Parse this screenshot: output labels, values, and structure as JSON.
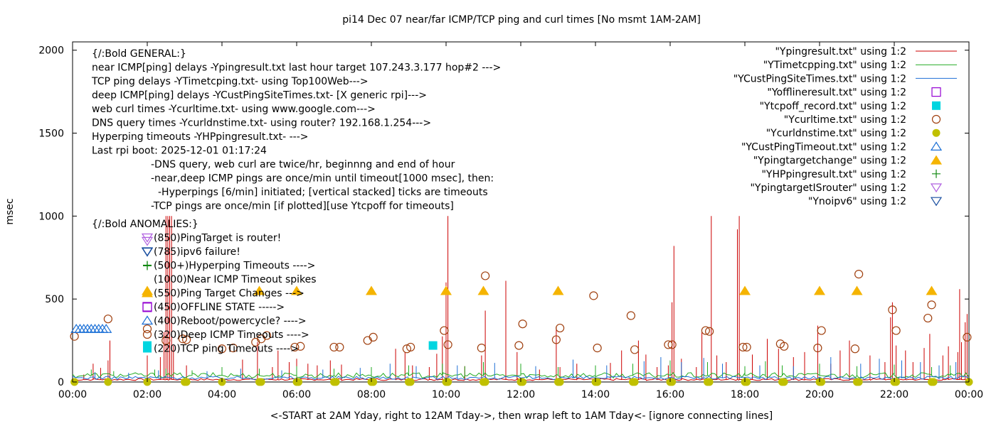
{
  "chart_data": {
    "type": "line",
    "title": "pi14 Dec 07  near/far ICMP/TCP ping and curl times [No msmt 1AM-2AM]",
    "xlabel": "<-START at 2AM Yday, right to 12AM Tday->, then wrap left to 1AM Tday<- [ignore connecting lines]",
    "ylabel": "msec",
    "xlim": [
      0,
      24
    ],
    "ylim": [
      0,
      2050
    ],
    "x_ticks": [
      "00:00",
      "02:00",
      "04:00",
      "06:00",
      "08:00",
      "10:00",
      "12:00",
      "14:00",
      "16:00",
      "18:00",
      "20:00",
      "22:00",
      "00:00"
    ],
    "y_ticks": [
      0,
      500,
      1000,
      1500,
      2000
    ],
    "grid": false,
    "legend_position": "top-right",
    "annotations": [
      {
        "text": "{/:Bold GENERAL:}"
      },
      {
        "text": "near ICMP[ping] delays -Ypingresult.txt last hour target 107.243.3.177 hop#2 --->"
      },
      {
        "text": "TCP ping delays -YTimetcping.txt- using Top100Web--->"
      },
      {
        "text": "deep ICMP[ping] delays -YCustPingSiteTimes.txt- [X generic rpi]--->"
      },
      {
        "text": "web curl times -Ycurltime.txt- using www.google.com--->"
      },
      {
        "text": "DNS query times -Ycurldnstime.txt- using router? 192.168.1.254--->"
      },
      {
        "text": "Hyperping timeouts -YHPpingresult.txt- --->"
      },
      {
        "text": "Last rpi boot: 2025-12-01 01:17:24"
      },
      {
        "text": "-DNS query, web curl are twice/hr, beginnng and end of hour"
      },
      {
        "text": "-near,deep ICMP pings are once/min until timeout[1000 msec], then:"
      },
      {
        "text": "-Hyperpings [6/min] initiated; [vertical stacked] ticks are timeouts"
      },
      {
        "text": "-TCP pings are once/min [if plotted][use Ytcpoff for timeouts]"
      },
      {
        "text": "{/:Bold ANOMALIES:}"
      },
      {
        "text": "(850)PingTarget is router!"
      },
      {
        "text": "(785)ipv6 failure!"
      },
      {
        "text": "(500+)Hyperping Timeouts ---->"
      },
      {
        "text": "(1000)Near ICMP Timeout spikes"
      },
      {
        "text": "(550)Ping Target Changes --->"
      },
      {
        "text": "(450)OFFLINE STATE ----->"
      },
      {
        "text": "(400)Reboot/powercycle? ---->"
      },
      {
        "text": "(320)Deep ICMP Timeouts ---->"
      },
      {
        "text": "(220)TCP ping Timeouts ---->"
      }
    ],
    "legend": [
      {
        "label": "\"Ypingresult.txt\" using 1:2",
        "style": "line",
        "color": "#cc0000"
      },
      {
        "label": "\"YTimetcpping.txt\" using 1:2",
        "style": "line",
        "color": "#22aa22"
      },
      {
        "label": "\"YCustPingSiteTimes.txt\" using 1:2",
        "style": "line",
        "color": "#1f6fd6"
      },
      {
        "label": "\"Yofflineresult.txt\" using 1:2",
        "style": "open-square",
        "color": "#9400d3"
      },
      {
        "label": "\"Ytcpoff_record.txt\" using 1:2",
        "style": "filled-square",
        "color": "#00d5e0"
      },
      {
        "label": "\"Ycurltime.txt\" using 1:2",
        "style": "open-circle",
        "color": "#a0400f"
      },
      {
        "label": "\"Ycurldnstime.txt\" using 1:2",
        "style": "filled-circle",
        "color": "#c0c000"
      },
      {
        "label": "\"YCustPingTimeout.txt\" using 1:2",
        "style": "open-triangle",
        "color": "#1a6fd6"
      },
      {
        "label": "\"Ypingtargetchange\" using 1:2",
        "style": "filled-triangle",
        "color": "#f5b400"
      },
      {
        "label": "\"YHPpingresult.txt\" using 1:2",
        "style": "plus",
        "color": "#118811"
      },
      {
        "label": "\"YpingtargetISrouter\" using 1:2",
        "style": "open-triangle-down",
        "color": "#b060e0"
      },
      {
        "label": "\"Ynoipv6\" using 1:2",
        "style": "open-triangle-down",
        "color": "#1a4fa0"
      }
    ],
    "series": [
      {
        "name": "\"Ypingresult.txt\" using 1:2",
        "baseline": 15,
        "spikes": [
          [
            0.3,
            45
          ],
          [
            0.55,
            110
          ],
          [
            0.75,
            85
          ],
          [
            0.95,
            130
          ],
          [
            1.0,
            250
          ],
          [
            2.0,
            160
          ],
          [
            2.35,
            150
          ],
          [
            2.45,
            300
          ],
          [
            2.5,
            1000
          ],
          [
            2.55,
            1000
          ],
          [
            2.6,
            1000
          ],
          [
            2.65,
            1000
          ],
          [
            2.7,
            220
          ],
          [
            3.05,
            100
          ],
          [
            4.55,
            135
          ],
          [
            4.95,
            240
          ],
          [
            5.35,
            90
          ],
          [
            5.5,
            190
          ],
          [
            5.8,
            120
          ],
          [
            6.0,
            140
          ],
          [
            6.3,
            110
          ],
          [
            6.55,
            100
          ],
          [
            6.9,
            130
          ],
          [
            7.2,
            105
          ],
          [
            8.65,
            200
          ],
          [
            8.9,
            180
          ],
          [
            9.1,
            100
          ],
          [
            9.55,
            90
          ],
          [
            9.75,
            170
          ],
          [
            9.9,
            275
          ],
          [
            10.0,
            600
          ],
          [
            10.05,
            1000
          ],
          [
            10.5,
            95
          ],
          [
            10.95,
            160
          ],
          [
            11.05,
            430
          ],
          [
            11.6,
            610
          ],
          [
            11.9,
            180
          ],
          [
            12.5,
            75
          ],
          [
            12.95,
            330
          ],
          [
            13.05,
            90
          ],
          [
            13.5,
            110
          ],
          [
            14.4,
            115
          ],
          [
            14.7,
            190
          ],
          [
            15.15,
            250
          ],
          [
            15.35,
            165
          ],
          [
            15.65,
            90
          ],
          [
            15.95,
            100
          ],
          [
            16.05,
            480
          ],
          [
            16.1,
            820
          ],
          [
            16.3,
            140
          ],
          [
            16.7,
            90
          ],
          [
            16.85,
            300
          ],
          [
            17.1,
            1000
          ],
          [
            17.25,
            160
          ],
          [
            17.5,
            120
          ],
          [
            17.8,
            920
          ],
          [
            17.85,
            1000
          ],
          [
            18.2,
            165
          ],
          [
            18.6,
            260
          ],
          [
            18.9,
            200
          ],
          [
            19.3,
            150
          ],
          [
            19.6,
            180
          ],
          [
            19.95,
            340
          ],
          [
            20.3,
            110
          ],
          [
            20.55,
            190
          ],
          [
            20.8,
            250
          ],
          [
            21.35,
            160
          ],
          [
            21.75,
            120
          ],
          [
            21.9,
            390
          ],
          [
            21.95,
            480
          ],
          [
            22.05,
            220
          ],
          [
            22.3,
            190
          ],
          [
            22.5,
            120
          ],
          [
            22.8,
            205
          ],
          [
            22.95,
            290
          ],
          [
            23.3,
            160
          ],
          [
            23.45,
            215
          ],
          [
            23.7,
            180
          ],
          [
            23.75,
            560
          ],
          [
            23.8,
            240
          ],
          [
            23.9,
            360
          ],
          [
            23.95,
            410
          ]
        ]
      },
      {
        "name": "\"YTimetcpping.txt\" using 1:2",
        "baseline": 40,
        "spikes": [
          [
            0.5,
            75
          ],
          [
            1.1,
            65
          ],
          [
            2.2,
            75
          ],
          [
            2.5,
            80
          ],
          [
            3.2,
            70
          ],
          [
            4.0,
            90
          ],
          [
            5.0,
            80
          ],
          [
            6.0,
            95
          ],
          [
            7.0,
            80
          ],
          [
            8.0,
            90
          ],
          [
            9.0,
            100
          ],
          [
            9.9,
            110
          ],
          [
            10.5,
            95
          ],
          [
            11.0,
            120
          ],
          [
            12.0,
            110
          ],
          [
            13.0,
            90
          ],
          [
            14.0,
            100
          ],
          [
            15.0,
            110
          ],
          [
            16.0,
            130
          ],
          [
            17.0,
            120
          ],
          [
            18.0,
            95
          ],
          [
            18.55,
            125
          ],
          [
            19.0,
            100
          ],
          [
            20.0,
            110
          ],
          [
            21.0,
            95
          ],
          [
            22.0,
            105
          ],
          [
            23.0,
            90
          ],
          [
            23.5,
            100
          ]
        ]
      },
      {
        "name": "\"YCustPingSiteTimes.txt\" using 1:2",
        "baseline": 25,
        "spikes": [
          [
            0.6,
            60
          ],
          [
            1.5,
            55
          ],
          [
            2.3,
            70
          ],
          [
            3.6,
            65
          ],
          [
            4.5,
            80
          ],
          [
            5.6,
            70
          ],
          [
            6.7,
            75
          ],
          [
            7.7,
            85
          ],
          [
            8.5,
            110
          ],
          [
            9.2,
            95
          ],
          [
            10.3,
            100
          ],
          [
            11.3,
            115
          ],
          [
            12.4,
            95
          ],
          [
            13.4,
            135
          ],
          [
            14.3,
            100
          ],
          [
            15.3,
            125
          ],
          [
            15.75,
            150
          ],
          [
            16.3,
            120
          ],
          [
            16.9,
            145
          ],
          [
            17.4,
            110
          ],
          [
            18.4,
            100
          ],
          [
            19.3,
            95
          ],
          [
            20.3,
            150
          ],
          [
            21.1,
            110
          ],
          [
            21.6,
            140
          ],
          [
            22.2,
            130
          ],
          [
            22.7,
            120
          ],
          [
            23.2,
            100
          ],
          [
            23.65,
            120
          ]
        ]
      }
    ],
    "markers": {
      "Ycurltime.txt": [
        [
          0.05,
          275
        ],
        [
          0.95,
          380
        ],
        [
          2.0,
          320
        ],
        [
          2.5,
          250
        ],
        [
          2.95,
          260
        ],
        [
          3.05,
          255
        ],
        [
          4.0,
          200
        ],
        [
          4.3,
          205
        ],
        [
          4.9,
          240
        ],
        [
          5.05,
          260
        ],
        [
          5.2,
          280
        ],
        [
          5.95,
          210
        ],
        [
          6.1,
          215
        ],
        [
          7.0,
          210
        ],
        [
          7.15,
          210
        ],
        [
          7.9,
          250
        ],
        [
          8.05,
          270
        ],
        [
          8.95,
          200
        ],
        [
          9.05,
          210
        ],
        [
          9.95,
          310
        ],
        [
          10.05,
          225
        ],
        [
          10.95,
          205
        ],
        [
          11.05,
          640
        ],
        [
          11.95,
          220
        ],
        [
          12.05,
          350
        ],
        [
          12.95,
          255
        ],
        [
          13.05,
          325
        ],
        [
          13.95,
          520
        ],
        [
          14.05,
          205
        ],
        [
          14.95,
          400
        ],
        [
          15.05,
          195
        ],
        [
          15.95,
          225
        ],
        [
          16.05,
          225
        ],
        [
          16.95,
          310
        ],
        [
          17.05,
          305
        ],
        [
          17.95,
          210
        ],
        [
          18.05,
          210
        ],
        [
          18.95,
          230
        ],
        [
          19.05,
          215
        ],
        [
          19.95,
          205
        ],
        [
          20.05,
          310
        ],
        [
          20.95,
          200
        ],
        [
          21.05,
          650
        ],
        [
          21.95,
          435
        ],
        [
          22.05,
          310
        ],
        [
          22.9,
          385
        ],
        [
          23.0,
          465
        ],
        [
          23.95,
          270
        ]
      ],
      "Ycurldnstime.txt": [
        [
          0.05,
          0
        ],
        [
          0.95,
          0
        ],
        [
          2.0,
          0
        ],
        [
          3.0,
          0
        ],
        [
          3.05,
          0
        ],
        [
          4.0,
          0
        ],
        [
          5.0,
          0
        ],
        [
          5.05,
          0
        ],
        [
          6.0,
          0
        ],
        [
          6.05,
          0
        ],
        [
          7.0,
          0
        ],
        [
          7.05,
          0
        ],
        [
          8.0,
          0
        ],
        [
          8.05,
          0
        ],
        [
          9.0,
          0
        ],
        [
          9.05,
          0
        ],
        [
          10.0,
          0
        ],
        [
          10.05,
          0
        ],
        [
          11.0,
          0
        ],
        [
          11.05,
          0
        ],
        [
          12.0,
          0
        ],
        [
          12.05,
          0
        ],
        [
          13.0,
          0
        ],
        [
          13.05,
          0
        ],
        [
          14.0,
          0
        ],
        [
          14.05,
          0
        ],
        [
          15.0,
          0
        ],
        [
          15.05,
          0
        ],
        [
          16.0,
          0
        ],
        [
          16.05,
          0
        ],
        [
          17.0,
          0
        ],
        [
          17.05,
          0
        ],
        [
          18.0,
          0
        ],
        [
          18.05,
          0
        ],
        [
          19.0,
          0
        ],
        [
          19.05,
          0
        ],
        [
          20.0,
          0
        ],
        [
          20.05,
          0
        ],
        [
          21.0,
          0
        ],
        [
          21.05,
          0
        ],
        [
          22.0,
          0
        ],
        [
          22.05,
          0
        ],
        [
          23.0,
          0
        ],
        [
          23.05,
          0
        ],
        [
          24.0,
          0
        ]
      ],
      "Ypingtargetchange": [
        [
          2.0,
          550
        ],
        [
          5.0,
          550
        ],
        [
          6.0,
          550
        ],
        [
          8.0,
          550
        ],
        [
          10.0,
          550
        ],
        [
          11.0,
          550
        ],
        [
          13.0,
          550
        ],
        [
          18.0,
          550
        ],
        [
          20.0,
          550
        ],
        [
          21.0,
          550
        ],
        [
          23.0,
          550
        ]
      ],
      "Ytcpoff_record.txt": [
        [
          2.0,
          220
        ],
        [
          9.65,
          220
        ]
      ],
      "YCustPingTimeout.txt": [
        [
          0.1,
          320
        ],
        [
          0.2,
          320
        ],
        [
          0.3,
          320
        ],
        [
          0.4,
          320
        ],
        [
          0.5,
          320
        ],
        [
          0.6,
          320
        ],
        [
          0.7,
          320
        ],
        [
          0.8,
          320
        ],
        [
          0.9,
          320
        ]
      ],
      "Yofflineresult.txt": [
        [
          2.0,
          450
        ]
      ],
      "YpingtargetISrouter": [
        [
          2.0,
          850
        ]
      ],
      "Ynoipv6": [
        [
          2.0,
          785
        ]
      ],
      "YHPpingresult.txt": [
        [
          2.0,
          700
        ]
      ]
    }
  }
}
